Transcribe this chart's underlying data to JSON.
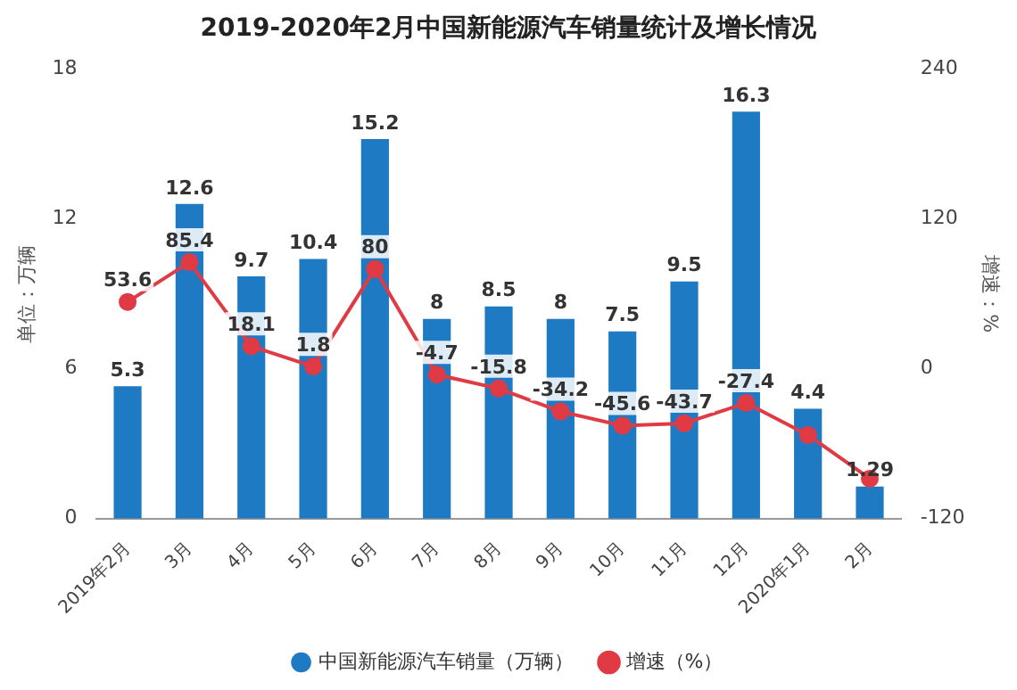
{
  "chart_data": {
    "type": "bar",
    "title": "2019-2020年2月中国新能源汽车销量统计及增长情况",
    "ylabel": "单位：万辆",
    "y2label": "增速：%",
    "categories": [
      "2019年2月",
      "3月",
      "4月",
      "5月",
      "6月",
      "7月",
      "8月",
      "9月",
      "10月",
      "11月",
      "12月",
      "2020年1月",
      "2月"
    ],
    "series": [
      {
        "name": "中国新能源汽车销量（万辆）",
        "color": "#1f7ac4",
        "values": [
          5.3,
          12.6,
          9.7,
          10.4,
          15.2,
          8,
          8.5,
          8,
          7.5,
          9.5,
          16.3,
          4.4,
          1.29
        ],
        "value_labels": [
          "5.3",
          "12.6",
          "9.7",
          "10.4",
          "15.2",
          "8",
          "8.5",
          "8",
          "7.5",
          "9.5",
          "16.3",
          "4.4",
          "1.29"
        ]
      },
      {
        "name": "增速（%）",
        "type": "line",
        "axis": "y2",
        "color": "#e03a45",
        "values": [
          53.6,
          85.4,
          18.1,
          1.8,
          80,
          -4.7,
          -15.8,
          -34.2,
          -45.6,
          -43.7,
          -27.4,
          -53,
          -88
        ],
        "value_labels": [
          "53.6",
          "85.4",
          "18.1",
          "1.8",
          "80",
          "-4.7",
          "-15.8",
          "-34.2",
          "-45.6",
          "-43.7",
          "-27.4",
          null,
          null
        ]
      }
    ],
    "ylim": [
      0,
      18
    ],
    "yticks": [
      0,
      6,
      12,
      18
    ],
    "y2lim": [
      -120,
      240
    ],
    "y2ticks": [
      -120,
      0,
      120,
      240
    ],
    "grid": false,
    "legend": "bottom",
    "marker": "circle",
    "line_style": "solid"
  }
}
